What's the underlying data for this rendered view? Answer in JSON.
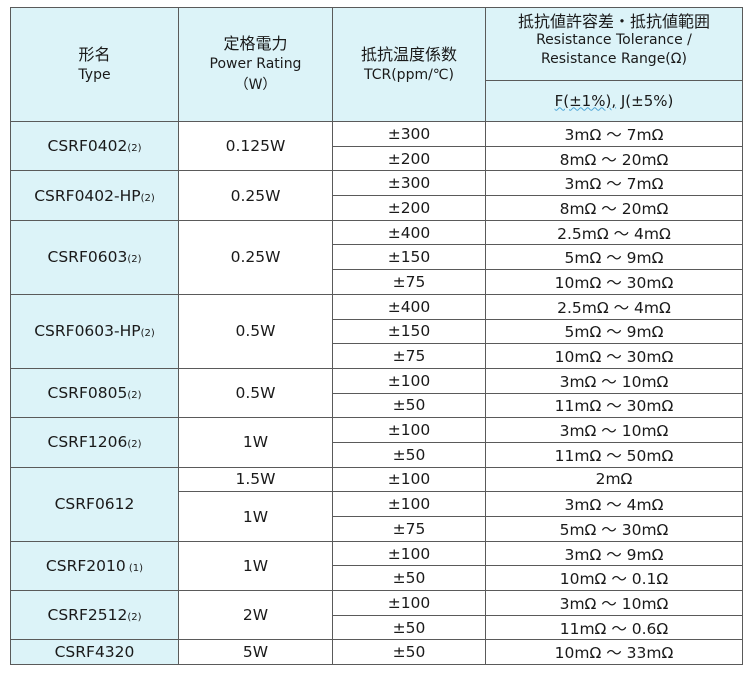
{
  "header": {
    "type_jp": "形名",
    "type_en": "Type",
    "power_jp": "定格電力",
    "power_en": "Power Rating",
    "power_unit": "（W）",
    "tcr_jp": "抵抗温度係数",
    "tcr_en": "TCR(ppm/℃)",
    "range_jp": "抵抗値許容差・抵抗値範囲",
    "range_en1": "Resistance Tolerance /",
    "range_en2": "Resistance Range(Ω)",
    "tol_f": "F(±1%),",
    "tol_j": " J(±5%)"
  },
  "groups": [
    {
      "type": "CSRF0402",
      "note": "(2)",
      "power": "0.125W",
      "rows": [
        {
          "tcr": "±300",
          "range": "3mΩ ～ 7mΩ"
        },
        {
          "tcr": "±200",
          "range": "8mΩ ～ 20mΩ"
        }
      ]
    },
    {
      "type": "CSRF0402-HP",
      "note": "(2)",
      "power": "0.25W",
      "rows": [
        {
          "tcr": "±300",
          "range": "3mΩ ～ 7mΩ"
        },
        {
          "tcr": "±200",
          "range": "8mΩ ～ 20mΩ"
        }
      ]
    },
    {
      "type": "CSRF0603",
      "note": "(2)",
      "power": "0.25W",
      "rows": [
        {
          "tcr": "±400",
          "range": "2.5mΩ ～ 4mΩ"
        },
        {
          "tcr": "±150",
          "range": "5mΩ ～ 9mΩ"
        },
        {
          "tcr": "±75",
          "range": "10mΩ ～ 30mΩ"
        }
      ]
    },
    {
      "type": "CSRF0603-HP",
      "note": "(2)",
      "power": "0.5W",
      "rows": [
        {
          "tcr": "±400",
          "range": "2.5mΩ ～ 4mΩ"
        },
        {
          "tcr": "±150",
          "range": "5mΩ ～ 9mΩ"
        },
        {
          "tcr": "±75",
          "range": "10mΩ ～ 30mΩ"
        }
      ]
    },
    {
      "type": "CSRF0805",
      "note": "(2)",
      "power": "0.5W",
      "rows": [
        {
          "tcr": "±100",
          "range": "3mΩ ～ 10mΩ"
        },
        {
          "tcr": "±50",
          "range": "11mΩ ～ 30mΩ"
        }
      ]
    },
    {
      "type": "CSRF1206",
      "note": "(2)",
      "power": "1W",
      "rows": [
        {
          "tcr": "±100",
          "range": "3mΩ ～ 10mΩ"
        },
        {
          "tcr": "±50",
          "range": "11mΩ ～ 50mΩ"
        }
      ]
    },
    {
      "type": "CSRF0612",
      "note": "",
      "power_top": "1.5W",
      "power": "1W",
      "rows": [
        {
          "tcr": "±100",
          "range": "2mΩ"
        },
        {
          "tcr": "±100",
          "range": "3mΩ ～ 4mΩ"
        },
        {
          "tcr": "±75",
          "range": "5mΩ ～ 30mΩ"
        }
      ]
    },
    {
      "type": "CSRF2010",
      "note": " (1)",
      "power": "1W",
      "rows": [
        {
          "tcr": "±100",
          "range": "3mΩ ～ 9mΩ"
        },
        {
          "tcr": "±50",
          "range": "10mΩ ～ 0.1Ω"
        }
      ]
    },
    {
      "type": "CSRF2512",
      "note": "(2)",
      "power": "2W",
      "rows": [
        {
          "tcr": "±100",
          "range": "3mΩ ～ 10mΩ"
        },
        {
          "tcr": "±50",
          "range": "11mΩ ～ 0.6Ω"
        }
      ]
    },
    {
      "type": "CSRF4320",
      "note": "",
      "power": "5W",
      "rows": [
        {
          "tcr": "±50",
          "range": "10mΩ ～ 33mΩ"
        }
      ]
    }
  ]
}
